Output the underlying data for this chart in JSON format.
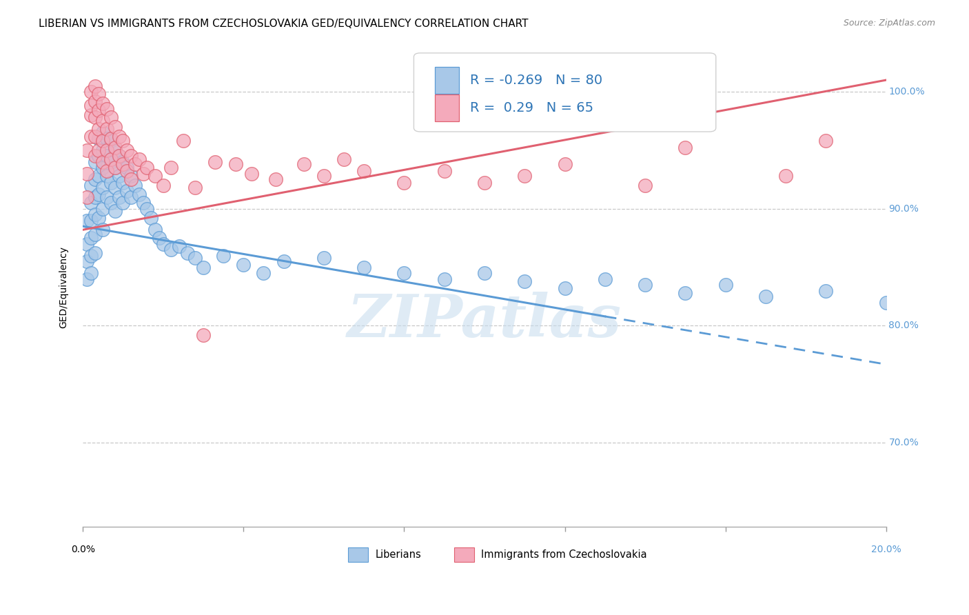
{
  "title": "LIBERIAN VS IMMIGRANTS FROM CZECHOSLOVAKIA GED/EQUIVALENCY CORRELATION CHART",
  "source": "Source: ZipAtlas.com",
  "ylabel": "GED/Equivalency",
  "x_min": 0.0,
  "x_max": 0.2,
  "y_min": 0.628,
  "y_max": 1.038,
  "blue_R": -0.269,
  "blue_N": 80,
  "pink_R": 0.29,
  "pink_N": 65,
  "blue_fill": "#A8C8E8",
  "blue_edge": "#5B9BD5",
  "pink_fill": "#F4AABB",
  "pink_edge": "#E06070",
  "legend_label_blue": "Liberians",
  "legend_label_pink": "Immigrants from Czechoslovakia",
  "blue_scatter_x": [
    0.001,
    0.001,
    0.001,
    0.001,
    0.002,
    0.002,
    0.002,
    0.002,
    0.002,
    0.002,
    0.003,
    0.003,
    0.003,
    0.003,
    0.003,
    0.003,
    0.004,
    0.004,
    0.004,
    0.004,
    0.004,
    0.005,
    0.005,
    0.005,
    0.005,
    0.005,
    0.005,
    0.006,
    0.006,
    0.006,
    0.006,
    0.007,
    0.007,
    0.007,
    0.007,
    0.008,
    0.008,
    0.008,
    0.008,
    0.009,
    0.009,
    0.009,
    0.01,
    0.01,
    0.01,
    0.011,
    0.011,
    0.012,
    0.012,
    0.013,
    0.014,
    0.015,
    0.016,
    0.017,
    0.018,
    0.019,
    0.02,
    0.022,
    0.024,
    0.026,
    0.028,
    0.03,
    0.035,
    0.04,
    0.045,
    0.05,
    0.06,
    0.07,
    0.08,
    0.09,
    0.1,
    0.11,
    0.12,
    0.13,
    0.14,
    0.15,
    0.16,
    0.17,
    0.185,
    0.2
  ],
  "blue_scatter_y": [
    0.89,
    0.87,
    0.855,
    0.84,
    0.92,
    0.905,
    0.89,
    0.875,
    0.86,
    0.845,
    0.94,
    0.925,
    0.91,
    0.895,
    0.878,
    0.862,
    0.96,
    0.945,
    0.928,
    0.912,
    0.892,
    0.965,
    0.95,
    0.935,
    0.918,
    0.9,
    0.882,
    0.96,
    0.945,
    0.928,
    0.91,
    0.958,
    0.94,
    0.922,
    0.905,
    0.95,
    0.935,
    0.918,
    0.898,
    0.945,
    0.928,
    0.91,
    0.94,
    0.922,
    0.905,
    0.935,
    0.915,
    0.928,
    0.91,
    0.92,
    0.912,
    0.905,
    0.9,
    0.892,
    0.882,
    0.875,
    0.87,
    0.865,
    0.868,
    0.862,
    0.858,
    0.85,
    0.86,
    0.852,
    0.845,
    0.855,
    0.858,
    0.85,
    0.845,
    0.84,
    0.845,
    0.838,
    0.832,
    0.84,
    0.835,
    0.828,
    0.835,
    0.825,
    0.83,
    0.82
  ],
  "pink_scatter_x": [
    0.001,
    0.001,
    0.001,
    0.002,
    0.002,
    0.002,
    0.002,
    0.003,
    0.003,
    0.003,
    0.003,
    0.003,
    0.004,
    0.004,
    0.004,
    0.004,
    0.005,
    0.005,
    0.005,
    0.005,
    0.006,
    0.006,
    0.006,
    0.006,
    0.007,
    0.007,
    0.007,
    0.008,
    0.008,
    0.008,
    0.009,
    0.009,
    0.01,
    0.01,
    0.011,
    0.011,
    0.012,
    0.012,
    0.013,
    0.014,
    0.015,
    0.016,
    0.018,
    0.02,
    0.022,
    0.025,
    0.028,
    0.03,
    0.033,
    0.038,
    0.042,
    0.048,
    0.055,
    0.06,
    0.065,
    0.07,
    0.08,
    0.09,
    0.1,
    0.11,
    0.12,
    0.14,
    0.15,
    0.175,
    0.185
  ],
  "pink_scatter_y": [
    0.91,
    0.93,
    0.95,
    0.98,
    1.0,
    0.988,
    0.962,
    1.005,
    0.992,
    0.978,
    0.962,
    0.945,
    0.998,
    0.984,
    0.968,
    0.95,
    0.99,
    0.975,
    0.958,
    0.94,
    0.985,
    0.968,
    0.95,
    0.932,
    0.978,
    0.96,
    0.942,
    0.97,
    0.952,
    0.935,
    0.962,
    0.945,
    0.958,
    0.938,
    0.95,
    0.932,
    0.945,
    0.925,
    0.938,
    0.942,
    0.93,
    0.935,
    0.928,
    0.92,
    0.935,
    0.958,
    0.918,
    0.792,
    0.94,
    0.938,
    0.93,
    0.925,
    0.938,
    0.928,
    0.942,
    0.932,
    0.922,
    0.932,
    0.922,
    0.928,
    0.938,
    0.92,
    0.952,
    0.928,
    0.958
  ],
  "blue_trend_x0": 0.0,
  "blue_trend_y0": 0.885,
  "blue_trend_solid_x1": 0.13,
  "blue_trend_solid_y1": 0.808,
  "blue_trend_dash_x1": 0.2,
  "blue_trend_dash_y1": 0.767,
  "pink_trend_x0": 0.0,
  "pink_trend_y0": 0.882,
  "pink_trend_x1": 0.2,
  "pink_trend_y1": 1.01,
  "watermark_text": "ZIPatlas",
  "title_fontsize": 11,
  "source_fontsize": 9,
  "tick_label_fontsize": 10,
  "ylabel_fontsize": 10
}
